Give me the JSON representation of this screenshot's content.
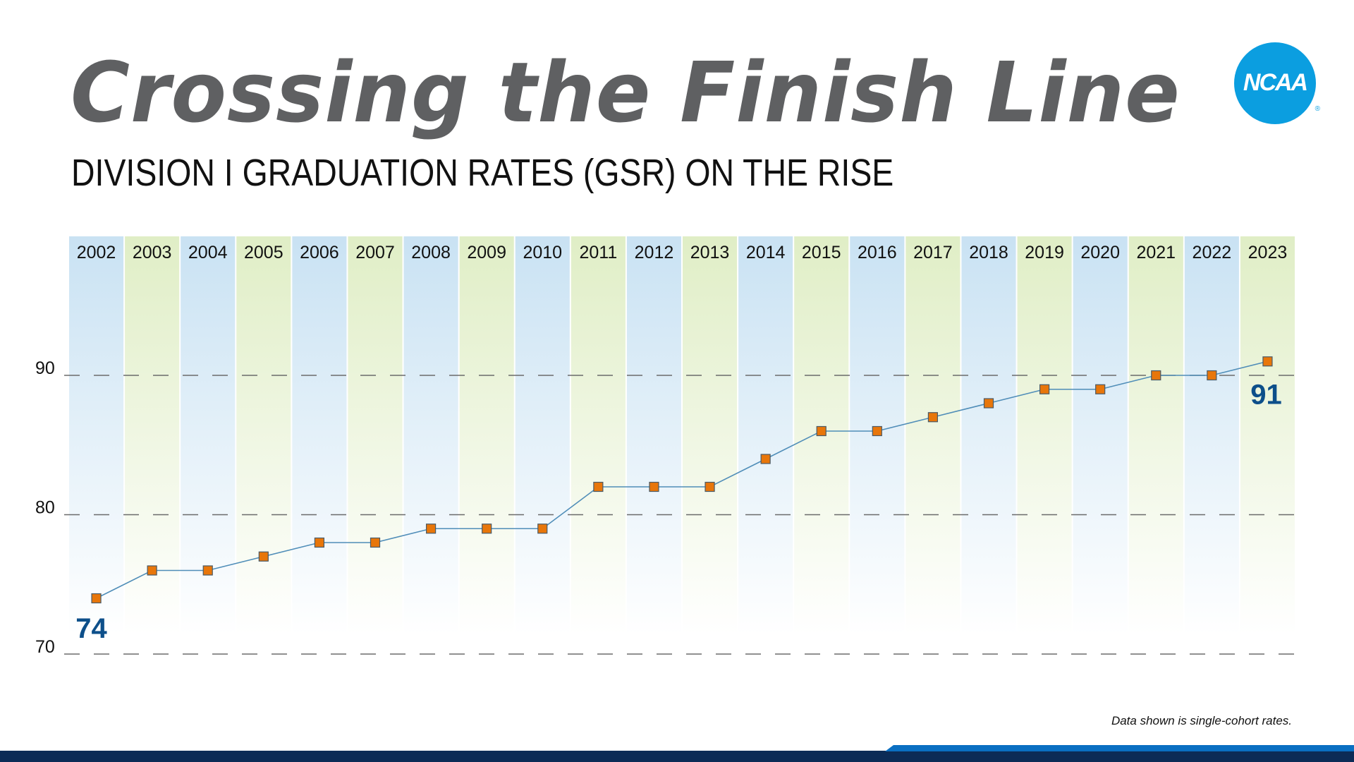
{
  "header": {
    "title": "Crossing the Finish Line",
    "subtitle": "DIVISION I GRADUATION RATES (GSR) ON THE RISE",
    "logo_text": "NCAA"
  },
  "footer": {
    "note": "Data shown is single-cohort rates."
  },
  "colors": {
    "blue_band": "#c9e2f3",
    "green_band": "#e0eec6",
    "marker": "#e8760a",
    "line": "#4f8db8",
    "label": "#0d4f8a"
  },
  "chart_data": {
    "type": "line",
    "title": "",
    "xlabel": "",
    "ylabel": "",
    "categories": [
      "2002",
      "2003",
      "2004",
      "2005",
      "2006",
      "2007",
      "2008",
      "2009",
      "2010",
      "2011",
      "2012",
      "2013",
      "2014",
      "2015",
      "2016",
      "2017",
      "2018",
      "2019",
      "2020",
      "2021",
      "2022",
      "2023"
    ],
    "values": [
      74,
      76,
      76,
      77,
      78,
      78,
      79,
      79,
      79,
      82,
      82,
      82,
      84,
      86,
      86,
      87,
      88,
      89,
      89,
      90,
      90,
      91
    ],
    "ylim": [
      70,
      90
    ],
    "yticks": [
      "70",
      "80",
      "90"
    ],
    "grid": "dashed horizontal",
    "annotations": [
      {
        "category": "2002",
        "text": "74"
      },
      {
        "category": "2023",
        "text": "91"
      }
    ],
    "marker": "square"
  }
}
